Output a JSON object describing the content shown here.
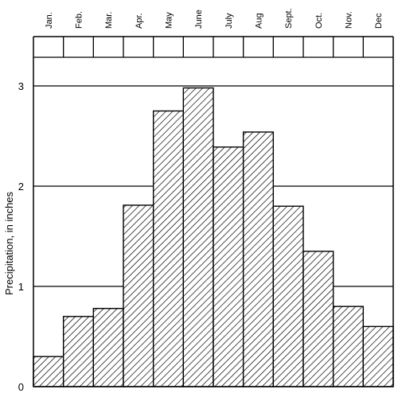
{
  "chart_data": {
    "type": "bar",
    "categories": [
      "Jan.",
      "Feb.",
      "Mar.",
      "Apr.",
      "May",
      "June",
      "July",
      "Aug",
      "Sept.",
      "Oct.",
      "Nov.",
      "Dec"
    ],
    "values": [
      0.3,
      0.7,
      0.78,
      1.81,
      2.75,
      2.98,
      2.39,
      2.54,
      1.8,
      1.35,
      0.8,
      0.6
    ],
    "ylabel": "Precipitation, in inches",
    "ylim": [
      0,
      3.4
    ],
    "yticks": [
      "0",
      "1",
      "2",
      "3"
    ],
    "grid": "horizontal",
    "fill_pattern": "diagonal-hatch",
    "colors": {
      "ink": "#000000",
      "background": "#ffffff"
    }
  }
}
